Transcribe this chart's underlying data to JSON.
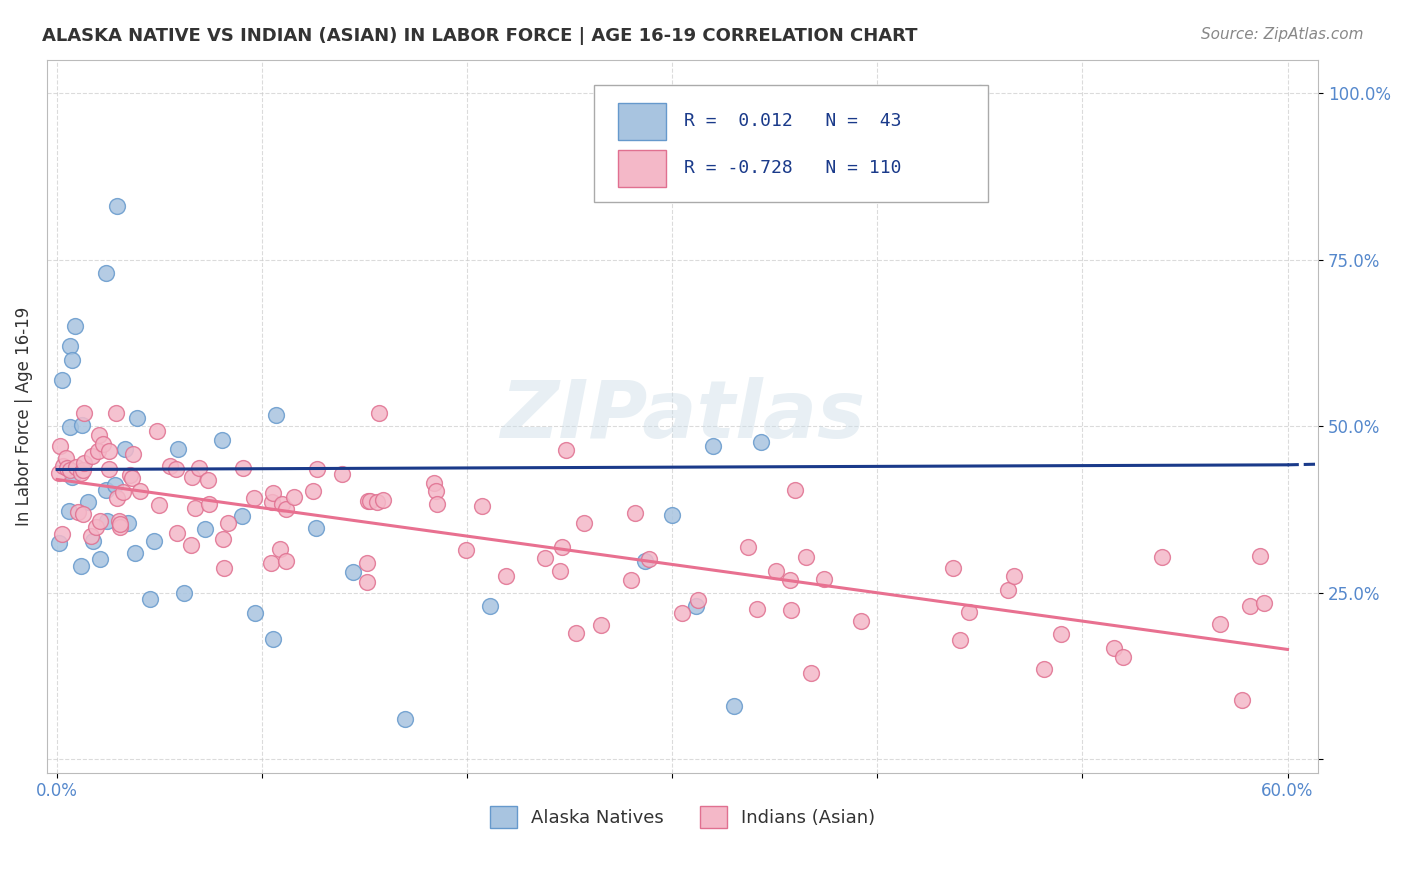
{
  "title": "ALASKA NATIVE VS INDIAN (ASIAN) IN LABOR FORCE | AGE 16-19 CORRELATION CHART",
  "source": "Source: ZipAtlas.com",
  "ylabel": "In Labor Force | Age 16-19",
  "alaska_R": 0.012,
  "alaska_N": 43,
  "indian_R": -0.728,
  "indian_N": 110,
  "alaska_color": "#a8c4e0",
  "alaska_edge_color": "#6699cc",
  "indian_color": "#f4b8c8",
  "indian_edge_color": "#e07090",
  "alaska_line_color": "#1a3a8a",
  "indian_line_color": "#e87090",
  "legend_text_color": "#1a3a8a",
  "watermark_color": "#ccdde8",
  "background_color": "#ffffff",
  "tick_color": "#5588cc",
  "title_color": "#333333",
  "source_color": "#888888",
  "x_min": 0.0,
  "x_max": 0.6,
  "y_min": 0.0,
  "y_max": 1.05
}
